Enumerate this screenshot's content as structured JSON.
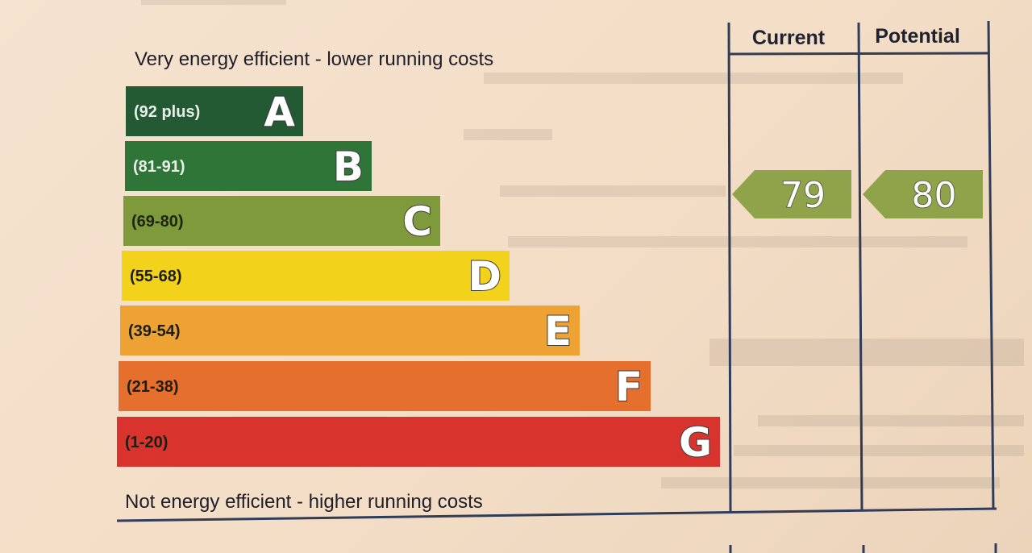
{
  "chart_data": {
    "type": "bar",
    "top_caption": "Very energy efficient - lower running costs",
    "bottom_caption": "Not energy efficient - higher running costs",
    "columns": [
      "Current",
      "Potential"
    ],
    "bands": [
      {
        "letter": "A",
        "range": "(92 plus)",
        "color": "#235a34",
        "text_color": "#e8efe8"
      },
      {
        "letter": "B",
        "range": "(81-91)",
        "color": "#2e7537",
        "text_color": "#e8efe8"
      },
      {
        "letter": "C",
        "range": "(69-80)",
        "color": "#7f9a3a",
        "text_color": "#1e2410"
      },
      {
        "letter": "D",
        "range": "(55-68)",
        "color": "#f2d21a",
        "text_color": "#1e1e10"
      },
      {
        "letter": "E",
        "range": "(39-54)",
        "color": "#eea233",
        "text_color": "#1e1e10"
      },
      {
        "letter": "F",
        "range": "(21-38)",
        "color": "#e5702e",
        "text_color": "#1e1e10"
      },
      {
        "letter": "G",
        "range": "(1-20)",
        "color": "#d9332d",
        "text_color": "#1e1e10"
      }
    ],
    "current": {
      "value": 79,
      "label": "79",
      "band": "C",
      "color": "#8fa34a"
    },
    "potential": {
      "value": 80,
      "label": "80",
      "band": "C",
      "color": "#8fa34a"
    }
  }
}
